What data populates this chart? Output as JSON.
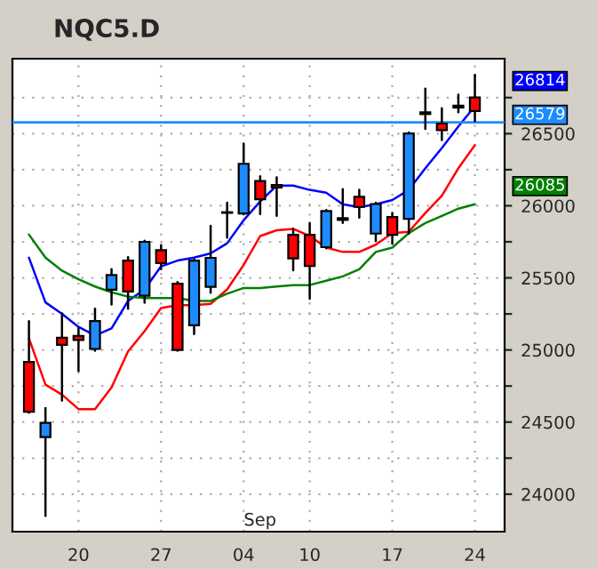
{
  "chart_data": {
    "type": "candlestick",
    "title": "NQC5.D",
    "categories": [
      null,
      null,
      null,
      "20",
      null,
      null,
      null,
      null,
      "27",
      null,
      null,
      null,
      null,
      "04",
      null,
      null,
      null,
      "10",
      null,
      null,
      null,
      null,
      "17",
      null,
      null,
      null,
      null,
      "24"
    ],
    "ohlc": [
      [
        24917,
        25200,
        24564,
        24572
      ],
      [
        24396,
        24597,
        23850,
        24494
      ],
      [
        25085,
        25253,
        24650,
        25036
      ],
      [
        25097,
        25151,
        24855,
        25069
      ],
      [
        25007,
        25286,
        24995,
        25200
      ],
      [
        25418,
        25561,
        25315,
        25520
      ],
      [
        25619,
        25643,
        25286,
        25405
      ],
      [
        25376,
        25758,
        25327,
        25750
      ],
      [
        25692,
        25725,
        25561,
        25602
      ],
      [
        25459,
        25471,
        24995,
        25000
      ],
      [
        25171,
        25627,
        25110,
        25619
      ],
      [
        25438,
        25861,
        25397,
        25639
      ],
      [
        25951,
        26021,
        25779,
        25955
      ],
      [
        25947,
        26431,
        25943,
        26291
      ],
      [
        26172,
        26205,
        25943,
        26045
      ],
      [
        26144,
        26197,
        25930,
        26127
      ],
      [
        25799,
        25840,
        25553,
        25635
      ],
      [
        25799,
        25881,
        25356,
        25582
      ],
      [
        25713,
        25971,
        25705,
        25963
      ],
      [
        25914,
        26115,
        25881,
        25902
      ],
      [
        26062,
        26111,
        25918,
        25992
      ],
      [
        25807,
        26021,
        25754,
        26012
      ],
      [
        25922,
        25951,
        25738,
        25799
      ],
      [
        25910,
        26509,
        25807,
        26501
      ],
      [
        26636,
        26812,
        26533,
        26648
      ],
      [
        26570,
        26677,
        26456,
        26525
      ],
      [
        26681,
        26771,
        26648,
        26694
      ],
      [
        26751,
        26907,
        26587,
        26657
      ]
    ],
    "colors": [
      "#ff0000",
      "#1e8cff",
      "#ff0000",
      "#ff0000",
      "#1e8cff",
      "#1e8cff",
      "#ff0000",
      "#1e8cff",
      "#ff0000",
      "#ff0000",
      "#1e8cff",
      "#1e8cff",
      "#1e8cff",
      "#1e8cff",
      "#ff0000",
      "#ff0000",
      "#ff0000",
      "#ff0000",
      "#1e8cff",
      "#ff0000",
      "#ff0000",
      "#1e8cff",
      "#ff0000",
      "#1e8cff",
      "#1e8cff",
      "#ff0000",
      "#1e8cff",
      "#ff0000"
    ],
    "series": [
      {
        "type": "line",
        "color": "#0000ff",
        "values": [
          25640,
          25330,
          25250,
          25160,
          25100,
          25150,
          25340,
          25420,
          25580,
          25620,
          25640,
          25670,
          25740,
          25900,
          26030,
          26140,
          26140,
          26110,
          26090,
          26010,
          25990,
          26010,
          26040,
          26110,
          26260,
          26400,
          26550,
          26690
        ]
      },
      {
        "type": "line",
        "color": "#ff0000",
        "values": [
          25080,
          24760,
          24690,
          24590,
          24590,
          24740,
          24990,
          25130,
          25290,
          25310,
          25310,
          25320,
          25420,
          25590,
          25790,
          25830,
          25840,
          25790,
          25710,
          25680,
          25680,
          25730,
          25810,
          25820,
          25950,
          26070,
          26260,
          26420
        ]
      },
      {
        "type": "line",
        "color": "#008000",
        "values": [
          25800,
          25640,
          25550,
          25490,
          25440,
          25400,
          25370,
          25360,
          25360,
          25360,
          25340,
          25340,
          25390,
          25430,
          25430,
          25440,
          25450,
          25450,
          25480,
          25510,
          25560,
          25680,
          25710,
          25810,
          25880,
          25930,
          25980,
          26010
        ]
      }
    ],
    "ylim": [
      23740,
      27020
    ],
    "yticks": [
      24000,
      {
        "value": 24250,
        "label": null
      },
      24500,
      {
        "value": 24750,
        "label": null
      },
      25000,
      {
        "value": 25250,
        "label": null
      },
      25500,
      {
        "value": 25750,
        "label": null
      },
      26000,
      {
        "value": 26250,
        "label": null
      },
      26500,
      {
        "value": 26750,
        "label": null
      }
    ],
    "ref_lines": [
      {
        "axis": "y",
        "value": 26579,
        "label": "26579",
        "color": "#1e8cff"
      }
    ],
    "annotations": [
      "Sep",
      "26814",
      "26085"
    ],
    "grid": true,
    "legend": false
  }
}
